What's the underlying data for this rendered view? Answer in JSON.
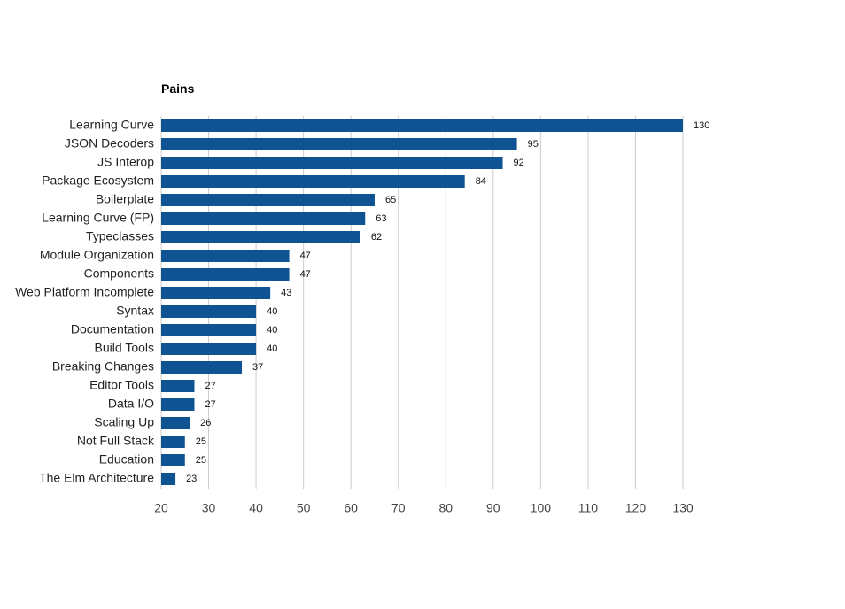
{
  "chart_data": {
    "type": "bar",
    "orientation": "horizontal",
    "title": "Pains",
    "xlabel": "",
    "ylabel": "",
    "xlim": [
      20,
      130
    ],
    "ticks": [
      20,
      30,
      40,
      50,
      60,
      70,
      80,
      90,
      100,
      110,
      120,
      130
    ],
    "grid": true,
    "legend": "none",
    "bar_color": "#0f5393",
    "categories": [
      "Learning Curve",
      "JSON Decoders",
      "JS Interop",
      "Package Ecosystem",
      "Boilerplate",
      "Learning Curve (FP)",
      "Typeclasses",
      "Module Organization",
      "Components",
      "Web Platform Incomplete",
      "Syntax",
      "Documentation",
      "Build Tools",
      "Breaking Changes",
      "Editor Tools",
      "Data I/O",
      "Scaling Up",
      "Not Full Stack",
      "Education",
      "The Elm Architecture"
    ],
    "values": [
      130,
      95,
      92,
      84,
      65,
      63,
      62,
      47,
      47,
      43,
      40,
      40,
      40,
      37,
      27,
      27,
      26,
      25,
      25,
      23
    ]
  }
}
